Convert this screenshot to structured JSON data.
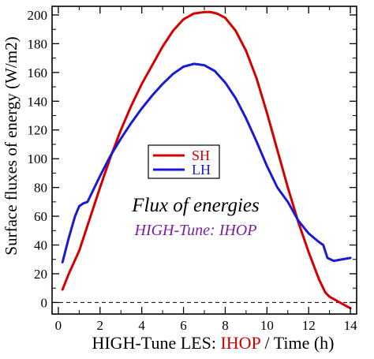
{
  "chart_data": {
    "type": "line",
    "title": "",
    "ylabel": "Surface fluxes of energy (W/m2)",
    "xlabel": {
      "prefix": "HIGH-Tune LES: ",
      "highlight": "IHOP",
      "suffix": " / Time (h)",
      "highlight_color": "#cc0000"
    },
    "xlim": [
      -0.3,
      14.3
    ],
    "ylim": [
      -8,
      206
    ],
    "xticks": [
      0,
      2,
      4,
      6,
      8,
      10,
      12,
      14
    ],
    "yticks": [
      0,
      20,
      40,
      60,
      80,
      100,
      120,
      140,
      160,
      180,
      200
    ],
    "zero_line": "dashed",
    "legend_placement": "center-left",
    "annotations": [
      {
        "text": "Flux of energies",
        "color": "#000000"
      },
      {
        "text": "HIGH-Tune: IHOP",
        "color": "#7a1fa2"
      }
    ],
    "series": [
      {
        "name": "SH",
        "color": "#d40000",
        "x": [
          0.2,
          0.5,
          1.0,
          1.5,
          2.0,
          2.5,
          3.0,
          3.5,
          4.0,
          4.5,
          5.0,
          5.5,
          6.0,
          6.5,
          7.0,
          7.3,
          7.6,
          8.0,
          8.5,
          9.0,
          9.5,
          10.0,
          10.5,
          11.0,
          11.5,
          12.0,
          12.5,
          12.8,
          13.0,
          13.5,
          14.0
        ],
        "values": [
          9,
          20,
          36,
          58,
          80,
          101,
          120,
          137,
          152,
          165,
          178,
          189,
          197,
          201,
          202,
          202,
          201,
          198,
          189,
          175,
          156,
          132,
          106,
          80,
          56,
          35,
          16,
          7,
          4,
          0,
          -4
        ]
      },
      {
        "name": "LH",
        "color": "#1a1ad4",
        "x": [
          0.2,
          0.5,
          0.8,
          1.0,
          1.2,
          1.4,
          1.7,
          2.0,
          2.5,
          3.0,
          3.5,
          4.0,
          4.5,
          5.0,
          5.5,
          6.0,
          6.5,
          7.0,
          7.5,
          8.0,
          8.5,
          9.0,
          9.5,
          10.0,
          10.5,
          11.0,
          11.5,
          12.0,
          12.5,
          12.7,
          12.9,
          13.2,
          14.0
        ],
        "values": [
          28,
          45,
          60,
          67,
          69,
          70,
          79,
          88,
          102,
          114,
          125,
          135,
          144,
          152,
          159,
          164,
          166,
          165,
          161,
          153,
          142,
          128,
          112,
          95,
          80,
          70,
          57,
          48,
          42,
          40,
          31,
          29,
          31
        ]
      }
    ]
  }
}
